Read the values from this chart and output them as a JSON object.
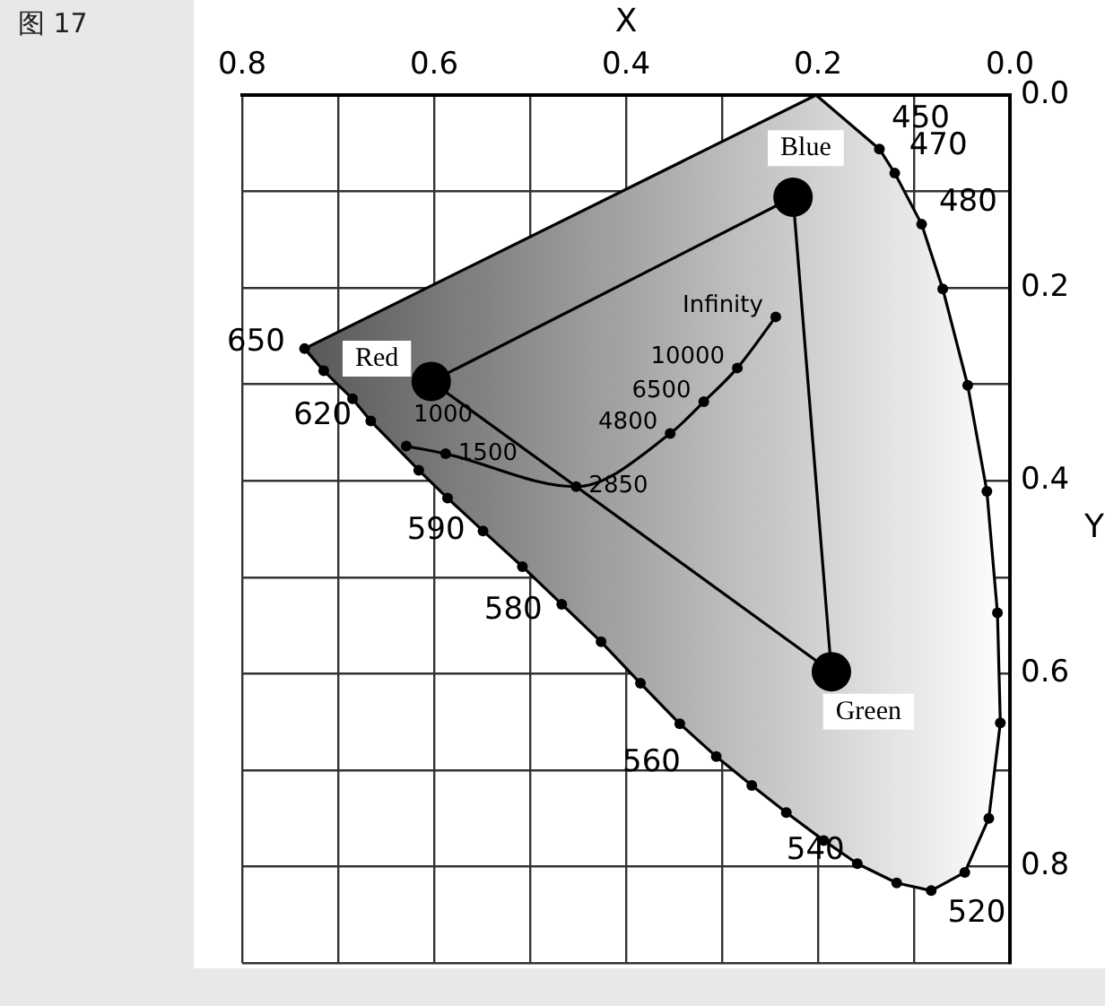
{
  "chart_data": {
    "type": "line",
    "xlabel": "X",
    "ylabel": "Y",
    "xlim": [
      0.8,
      0
    ],
    "ylim": [
      0.9,
      0
    ],
    "xticks": [
      {
        "value": 0,
        "label": "0.0"
      },
      {
        "value": 0.1,
        "label": null
      },
      0.2,
      {
        "value": 0.3,
        "label": null
      },
      0.4,
      {
        "value": 0.5,
        "label": null
      },
      0.6,
      {
        "value": 0.7,
        "label": null
      },
      0.8
    ],
    "yticks": [
      {
        "value": 0,
        "label": "0.0"
      },
      {
        "value": 0.1,
        "label": null
      },
      0.2,
      {
        "value": 0.3,
        "label": null
      },
      0.4,
      {
        "value": 0.5,
        "label": null
      },
      0.6,
      {
        "value": 0.7,
        "label": null
      },
      0.8,
      {
        "value": 0.9,
        "label": null
      }
    ],
    "grid": true,
    "legend": false,
    "series": [
      {
        "type": "line",
        "marker": "circle",
        "color": "#000000",
        "x": [
          0.136,
          0.12,
          0.092,
          0.07,
          0.044,
          0.024,
          0.013,
          0.01,
          0.022,
          0.047,
          0.082,
          0.118,
          0.159,
          0.194,
          0.233,
          0.269,
          0.306,
          0.344,
          0.385,
          0.426,
          0.467,
          0.508,
          0.549,
          0.586,
          0.616,
          0.666,
          0.685,
          0.715,
          0.735
        ],
        "values": [
          0.056,
          0.081,
          0.134,
          0.201,
          0.301,
          0.411,
          0.537,
          0.651,
          0.75,
          0.806,
          0.825,
          0.817,
          0.797,
          0.773,
          0.744,
          0.716,
          0.686,
          0.652,
          0.61,
          0.567,
          0.528,
          0.489,
          0.452,
          0.418,
          0.389,
          0.338,
          0.315,
          0.286,
          0.263
        ]
      },
      {
        "type": "line",
        "marker": "none",
        "color": "#000000",
        "x": [
          0.735,
          0.202,
          0.136
        ],
        "values": [
          0.263,
          0,
          0.056
        ]
      },
      {
        "type": "line",
        "marker": "circle",
        "color": "#000000",
        "x": [
          0.244,
          0.284,
          0.319,
          0.354,
          0.452,
          0.588,
          0.629
        ],
        "values": [
          0.23,
          0.283,
          0.318,
          0.351,
          0.406,
          0.372,
          0.364
        ]
      },
      {
        "type": "line",
        "marker": "none",
        "color": "#000000",
        "x": [
          0.226,
          0.186
        ],
        "values": [
          0.106,
          0.598
        ]
      },
      {
        "type": "line",
        "marker": "none",
        "color": "#000000",
        "x": [
          0.186,
          0.603
        ],
        "values": [
          0.598,
          0.297
        ]
      },
      {
        "type": "line",
        "marker": "none",
        "color": "#000000",
        "x": [
          0.603,
          0.226
        ],
        "values": [
          0.297,
          0.106
        ]
      },
      {
        "type": "scatter",
        "marker": "circle",
        "color": "#000000",
        "x": [
          0.226,
          0.186,
          0.603
        ],
        "values": [
          0.106,
          0.598,
          0.297
        ]
      }
    ],
    "annotations": [
      {
        "text": "450",
        "x": 0.136,
        "y": 0.056
      },
      {
        "text": "470",
        "x": 0.12,
        "y": 0.081
      },
      {
        "text": "480",
        "x": 0.092,
        "y": 0.134
      },
      {
        "text": "520",
        "x": 0.082,
        "y": 0.825
      },
      {
        "text": "540",
        "x": 0.233,
        "y": 0.744
      },
      {
        "text": "560",
        "x": 0.344,
        "y": 0.652
      },
      {
        "text": "580",
        "x": 0.467,
        "y": 0.528
      },
      {
        "text": "590",
        "x": 0.549,
        "y": 0.452
      },
      {
        "text": "620",
        "x": 0.666,
        "y": 0.338
      },
      {
        "text": "650",
        "x": 0.735,
        "y": 0.263
      },
      {
        "text": "Infinity",
        "x": 0.244,
        "y": 0.23
      },
      {
        "text": "10000",
        "x": 0.284,
        "y": 0.283
      },
      {
        "text": "6500",
        "x": 0.319,
        "y": 0.318
      },
      {
        "text": "4800",
        "x": 0.354,
        "y": 0.351
      },
      {
        "text": "2850",
        "x": 0.452,
        "y": 0.406
      },
      {
        "text": "1500",
        "x": 0.588,
        "y": 0.372
      },
      {
        "text": "1000",
        "x": 0.629,
        "y": 0.364
      },
      {
        "text": "Blue",
        "x": 0.226,
        "y": 0.106
      },
      {
        "text": "Green",
        "x": 0.186,
        "y": 0.598
      },
      {
        "text": "Red",
        "x": 0.603,
        "y": 0.297
      },
      "图 17"
    ]
  }
}
